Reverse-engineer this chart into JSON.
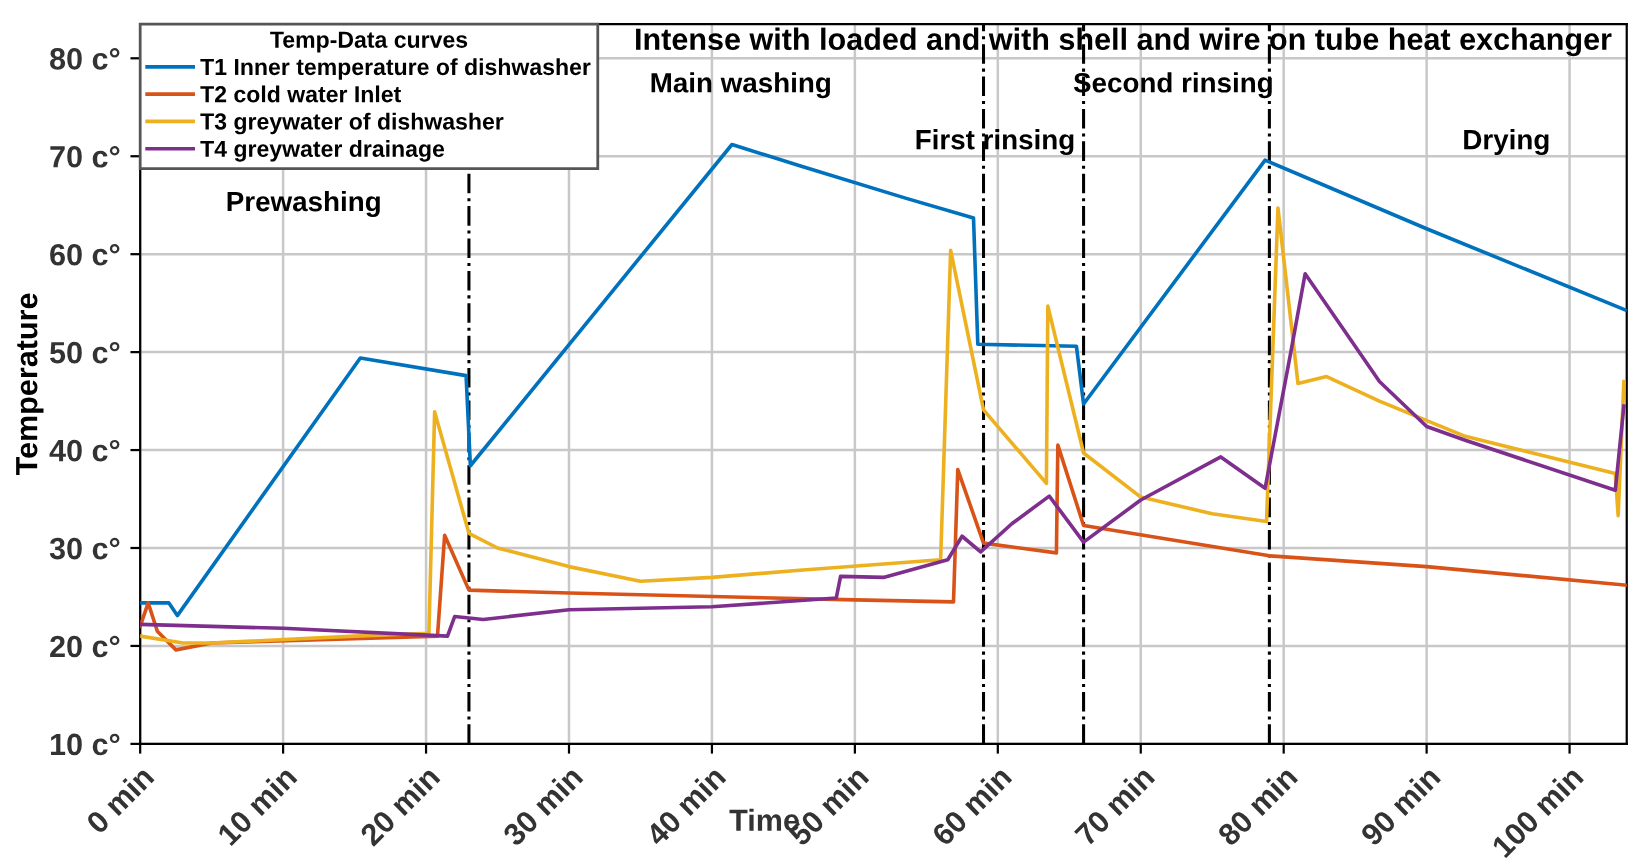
{
  "chart_data": {
    "type": "line",
    "title": "Intense with loaded and with shell and wire on tube heat exchanger",
    "xlabel": "Time",
    "ylabel": "Temperature",
    "legend_title": "Temp-Data curves",
    "xlim": [
      0,
      104
    ],
    "ylim": [
      10,
      83.5
    ],
    "xticks": [
      {
        "value": 0,
        "label": "0 min"
      },
      {
        "value": 10,
        "label": "10 min"
      },
      {
        "value": 20,
        "label": "20 min"
      },
      {
        "value": 30,
        "label": "30 min"
      },
      {
        "value": 40,
        "label": "40 min"
      },
      {
        "value": 50,
        "label": "50 min"
      },
      {
        "value": 60,
        "label": "60 min"
      },
      {
        "value": 70,
        "label": "70 min"
      },
      {
        "value": 80,
        "label": "80 min"
      },
      {
        "value": 90,
        "label": "90 min"
      },
      {
        "value": 100,
        "label": "100 min"
      }
    ],
    "yticks": [
      {
        "value": 10,
        "label": "10 c°"
      },
      {
        "value": 20,
        "label": "20 c°"
      },
      {
        "value": 30,
        "label": "30 c°"
      },
      {
        "value": 40,
        "label": "40 c°"
      },
      {
        "value": 50,
        "label": "50 c°"
      },
      {
        "value": 60,
        "label": "60 c°"
      },
      {
        "value": 70,
        "label": "70 c°"
      },
      {
        "value": 80,
        "label": "80 c°"
      }
    ],
    "grid": true,
    "legend": "top left",
    "marker": "none",
    "line_style": "solid",
    "series": [
      {
        "name": "T1 Inner temperature of dishwasher",
        "color": "#0072bd",
        "x": [
          0,
          2,
          2.6,
          15.4,
          22.8,
          23.1,
          41.4,
          46.2,
          53.6,
          58.3,
          58.6,
          65.5,
          66.0,
          78.7,
          90,
          103.9
        ],
        "values": [
          24.4,
          24.4,
          23.1,
          49.4,
          47.6,
          38.4,
          71.2,
          69.0,
          65.7,
          63.7,
          50.8,
          50.6,
          44.7,
          69.6,
          62.6,
          54.3
        ]
      },
      {
        "name": "T2 cold water Inlet",
        "color": "#d95319",
        "x": [
          0,
          0.56,
          1.2,
          2.5,
          5,
          20.8,
          21.3,
          23,
          30,
          50,
          56.9,
          57.2,
          59,
          64.1,
          64.2,
          66.0,
          79.0,
          90,
          104
        ],
        "values": [
          22,
          24.4,
          21.5,
          19.6,
          20.3,
          21.0,
          31.3,
          25.7,
          25.4,
          24.7,
          24.5,
          38.0,
          30.5,
          29.5,
          40.5,
          32.3,
          29.2,
          28.1,
          26.2
        ]
      },
      {
        "name": "T3 greywater of dishwasher",
        "color": "#edb120",
        "x": [
          0,
          3,
          5,
          15,
          20.2,
          20.6,
          23,
          25,
          30,
          35,
          40,
          45.9,
          56,
          56.7,
          59.0,
          63.4,
          63.5,
          66,
          70,
          75,
          78.8,
          79.6,
          81,
          83,
          86.7,
          92.7,
          103.2,
          103.4,
          103.8
        ],
        "values": [
          21.0,
          20.3,
          20.3,
          21.0,
          21.3,
          43.9,
          31.5,
          30.0,
          28.1,
          26.6,
          27.0,
          27.7,
          28.8,
          60.4,
          44.1,
          36.6,
          54.7,
          39.7,
          35.2,
          33.5,
          32.7,
          64.7,
          46.8,
          47.5,
          45.0,
          41.4,
          37.6,
          33.3,
          47.0
        ]
      },
      {
        "name": "T4 greywater drainage",
        "color": "#7e2f8e",
        "x": [
          0,
          10,
          21.5,
          22,
          24,
          30,
          40,
          48.7,
          49,
          52,
          56.5,
          57.5,
          58.8,
          61,
          63.6,
          66,
          70,
          75.6,
          78.7,
          80.5,
          81.5,
          86.7,
          90,
          92.7,
          103.2,
          103.8
        ],
        "values": [
          22.2,
          21.8,
          21.0,
          23.0,
          22.7,
          23.7,
          24.0,
          24.9,
          27.1,
          27.0,
          28.8,
          31.2,
          29.6,
          32.5,
          35.3,
          30.6,
          34.9,
          39.3,
          36.1,
          50.0,
          58.0,
          47.0,
          42.4,
          41.0,
          35.9,
          44.5
        ]
      }
    ],
    "ref_lines": [
      {
        "axis": "x",
        "value": 23,
        "color": "#000000",
        "line_style": "dashdot"
      },
      {
        "axis": "x",
        "value": 59,
        "color": "#000000",
        "line_style": "dashdot"
      },
      {
        "axis": "x",
        "value": 66,
        "color": "#000000",
        "line_style": "dashdot"
      },
      {
        "axis": "x",
        "value": 79,
        "color": "#000000",
        "line_style": "dashdot"
      }
    ],
    "annotations": [
      "Prewashing",
      "Main washing",
      "First rinsing",
      "Second rinsing",
      "Drying"
    ]
  }
}
